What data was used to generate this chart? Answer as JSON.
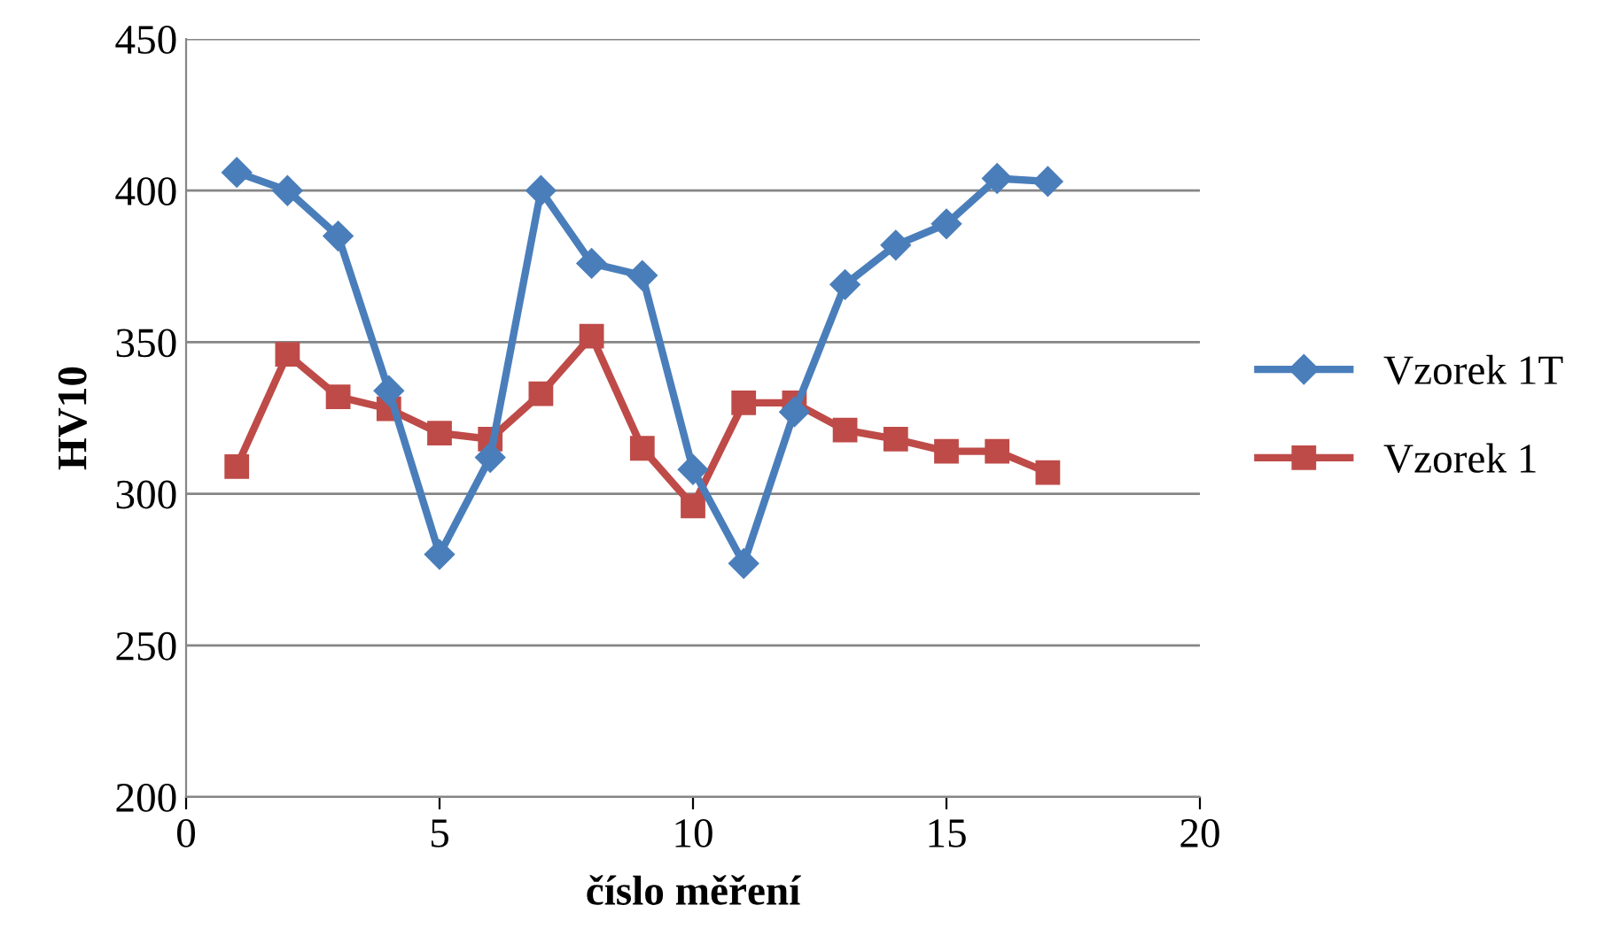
{
  "chart_data": {
    "type": "line",
    "xlabel": "číslo měření",
    "ylabel": "HV10",
    "x": [
      1,
      2,
      3,
      4,
      5,
      6,
      7,
      8,
      9,
      10,
      11,
      12,
      13,
      14,
      15,
      16,
      17
    ],
    "series": [
      {
        "name": "Vzorek 1T",
        "color": "#4a7ebb",
        "marker": "diamond",
        "values": [
          406,
          400,
          385,
          334,
          280,
          312,
          400,
          376,
          372,
          308,
          277,
          327,
          369,
          382,
          389,
          404,
          403
        ]
      },
      {
        "name": "Vzorek 1",
        "color": "#be4b48",
        "marker": "square",
        "values": [
          309,
          346,
          332,
          328,
          320,
          318,
          333,
          352,
          315,
          296,
          330,
          330,
          321,
          318,
          314,
          314,
          307
        ]
      }
    ],
    "xlim": [
      0,
      20
    ],
    "xticks": [
      0,
      5,
      10,
      15,
      20
    ],
    "ylim": [
      200,
      450
    ],
    "yticks": [
      200,
      250,
      300,
      350,
      400,
      450
    ],
    "grid": "y",
    "legend": "right"
  }
}
